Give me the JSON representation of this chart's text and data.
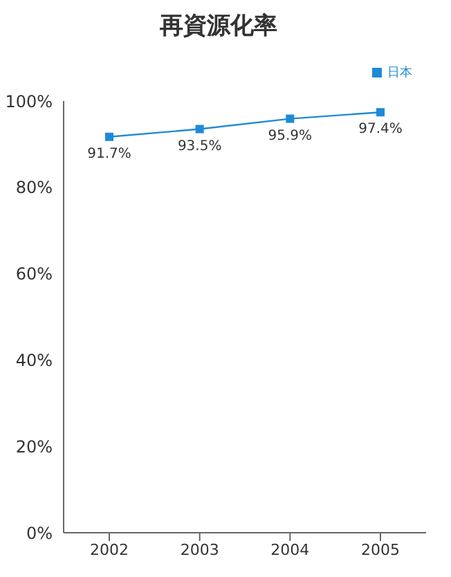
{
  "chart_data": {
    "type": "line",
    "title": "再資源化率",
    "categories": [
      "2002",
      "2003",
      "2004",
      "2005"
    ],
    "series": [
      {
        "name": "日本",
        "color": "#1f8ad6",
        "values": [
          91.7,
          93.5,
          95.9,
          97.4
        ],
        "value_labels": [
          "91.7%",
          "93.5%",
          "95.9%",
          "97.4%"
        ]
      }
    ],
    "ylim": [
      0,
      100
    ],
    "yticks": [
      {
        "value": 0,
        "label": "0%"
      },
      {
        "value": 20,
        "label": "20%"
      },
      {
        "value": 40,
        "label": "40%"
      },
      {
        "value": 60,
        "label": "60%"
      },
      {
        "value": 80,
        "label": "80%"
      },
      {
        "value": 100,
        "label": "100%"
      }
    ],
    "grid": false,
    "legend": "top right",
    "marker": "square",
    "line_style": "solid"
  }
}
